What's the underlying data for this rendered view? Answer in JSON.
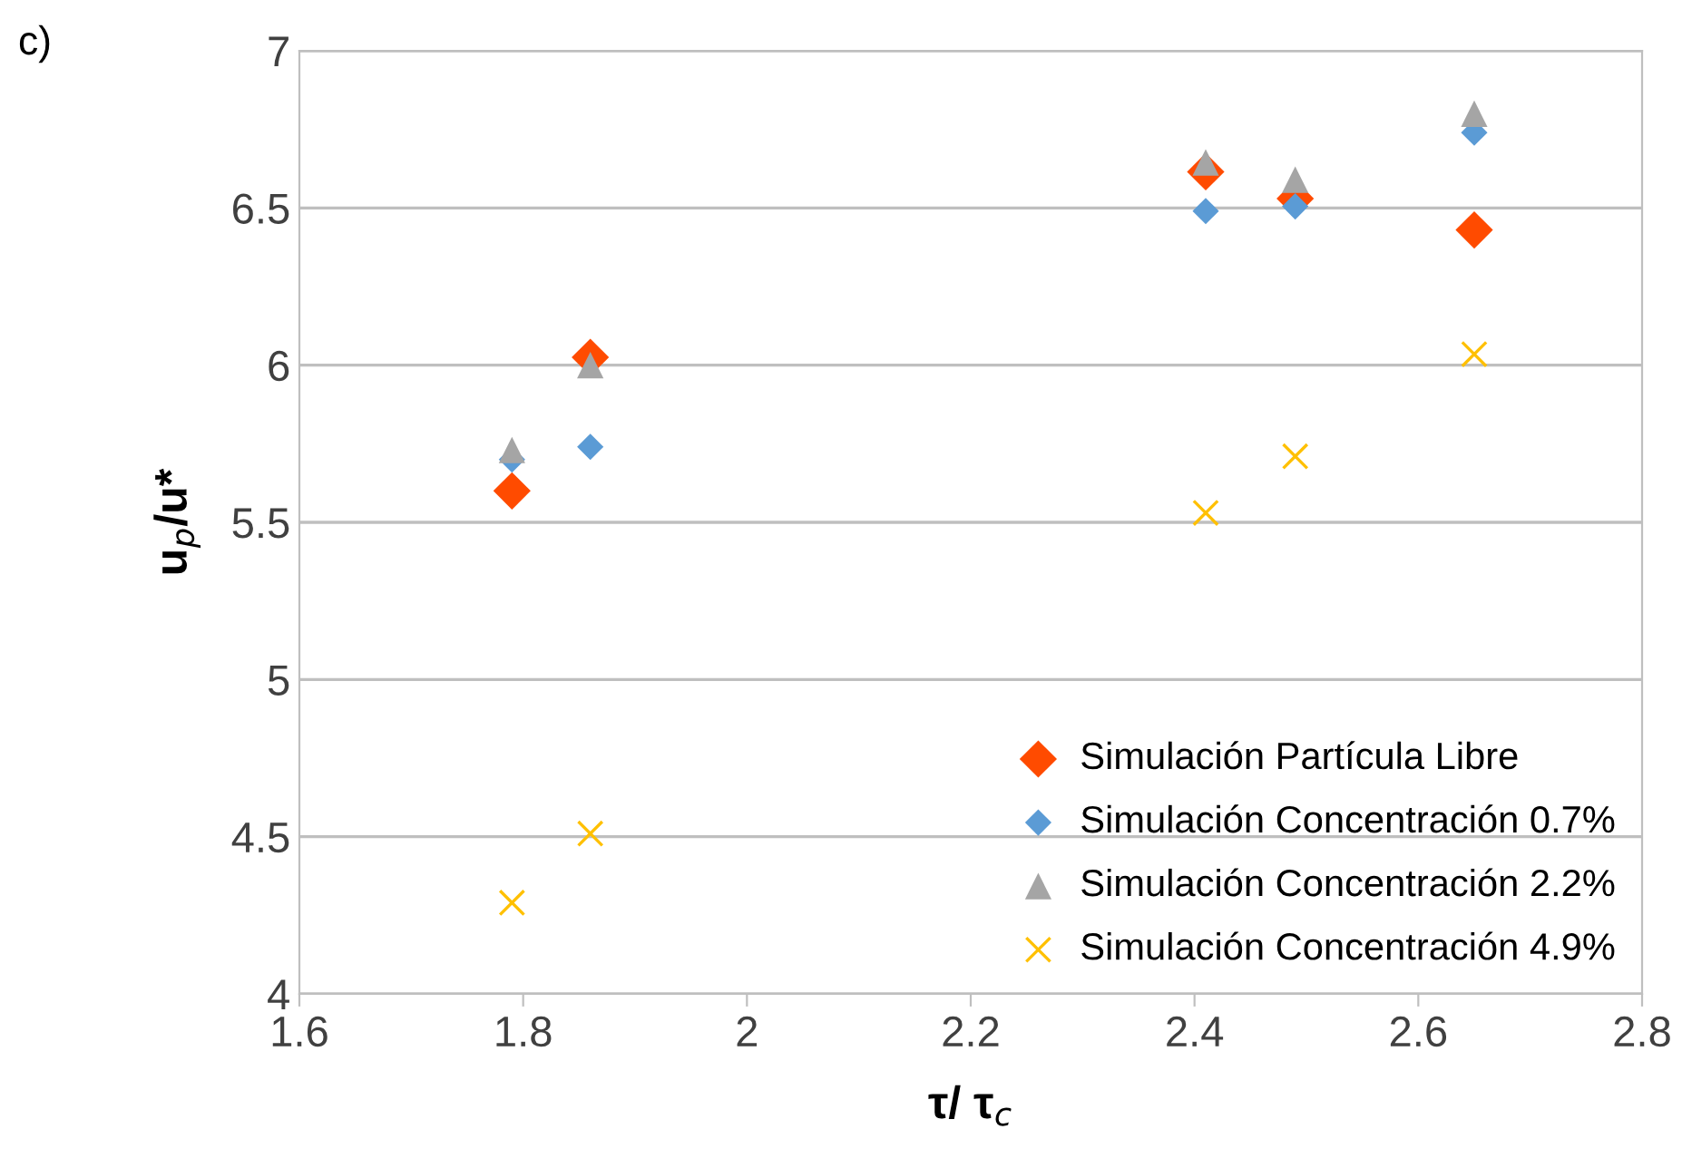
{
  "chart_data": {
    "type": "scatter",
    "xlabel": "τ/ τ$_{c}$",
    "ylabel": "u$_{p}$/u*",
    "annotations": [
      "c)"
    ],
    "xlim": [
      1.6,
      2.8
    ],
    "xticks": [
      1.6,
      1.8,
      {
        "value": 2,
        "label": "2"
      },
      2.2,
      2.4,
      2.6,
      2.8
    ],
    "ylim": [
      4,
      7
    ],
    "yticks": [
      {
        "value": 4,
        "label": "4"
      },
      4.5,
      {
        "value": 5,
        "label": "5"
      },
      5.5,
      {
        "value": 6,
        "label": "6"
      },
      6.5,
      {
        "value": 7,
        "label": "7"
      }
    ],
    "grid": "y",
    "legend": "bottom right",
    "series": [
      {
        "name": "Simulación Partícula Libre",
        "color": "#ff4b00",
        "marker": "diamond",
        "x": [
          1.79,
          1.86,
          2.41,
          2.49,
          2.65
        ],
        "values": [
          5.6,
          6.025,
          6.615,
          6.53,
          6.43
        ]
      },
      {
        "name": "Simulación Concentración 0.7%",
        "color": "#5b9bd5",
        "marker": "diamond",
        "x": [
          1.79,
          1.86,
          2.41,
          2.49,
          2.65
        ],
        "values": [
          5.7,
          5.74,
          6.49,
          6.505,
          6.74
        ]
      },
      {
        "name": "Simulación Concentración 2.2%",
        "color": "#a5a5a5",
        "marker": "triangle",
        "x": [
          1.79,
          1.86,
          2.41,
          2.49,
          2.65
        ],
        "values": [
          5.73,
          6.0,
          6.645,
          6.59,
          6.8
        ]
      },
      {
        "name": "Simulación Concentración 4.9%",
        "color": "#ffc000",
        "marker": "cross",
        "x": [
          1.79,
          1.86,
          2.41,
          2.49,
          2.65
        ],
        "values": [
          4.29,
          4.51,
          5.53,
          5.71,
          6.035
        ]
      }
    ]
  }
}
